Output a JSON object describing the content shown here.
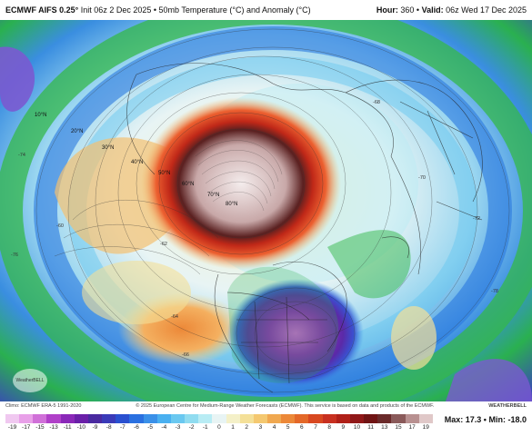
{
  "header": {
    "model": "ECMWF AIFS 0.25°",
    "init": "Init 06z 2 Dec 2025",
    "separator": "•",
    "product": "50mb Temperature (°C) and Anomaly (°C)",
    "hour_label": "Hour:",
    "hour_value": "360",
    "valid_label": "Valid:",
    "valid_value": "06z Wed 17 Dec 2025"
  },
  "map": {
    "latitude_labels": [
      "10°N",
      "20°N",
      "30°N",
      "40°N",
      "50°N",
      "60°N",
      "70°N",
      "80°N"
    ],
    "contour_values": [
      "-60",
      "-62",
      "-64",
      "-66",
      "-68",
      "-70",
      "-72",
      "-74",
      "-76",
      "-78"
    ],
    "logo_text": "WeatherBELL",
    "colors": {
      "warm_core": "#f3e6e6",
      "cold_core": "#7a1fa8"
    }
  },
  "footer": {
    "climo": "Climo: ECMWF ERA-5 1991-2020",
    "copyright": "© 2025 European Centre for Medium-Range Weather Forecasts (ECMWF). This service is based on data and products of the ECMWF.",
    "brand": "WEATHERBELL",
    "colorbar_ticks": [
      "-19",
      "-17",
      "-15",
      "-13",
      "-11",
      "-10",
      "-9",
      "-8",
      "-7",
      "-6",
      "-5",
      "-4",
      "-3",
      "-2",
      "-1",
      "0",
      "1",
      "2",
      "3",
      "4",
      "5",
      "6",
      "7",
      "8",
      "9",
      "10",
      "11",
      "13",
      "15",
      "17",
      "19"
    ],
    "colorbar_colors": [
      "#f0c8f0",
      "#e8a0e8",
      "#d070d8",
      "#b040c8",
      "#8a28b8",
      "#6a20a8",
      "#4a2aa0",
      "#3a3ab8",
      "#2a50d0",
      "#2a70e0",
      "#3a90e8",
      "#4ab0f0",
      "#6ac8f0",
      "#90dcf0",
      "#b8ecf4",
      "#e8f4f4",
      "#f4f0c8",
      "#f4e098",
      "#f4c870",
      "#f0a850",
      "#ec8838",
      "#e46828",
      "#d84820",
      "#c83020",
      "#b02018",
      "#901818",
      "#701414",
      "#6a2a2a",
      "#8a5a5a",
      "#b89090",
      "#e0c8c8"
    ],
    "max_label": "Max:",
    "max_value": "17.3",
    "min_label": "Min:",
    "min_value": "-18.0",
    "stats_sep": "•"
  }
}
